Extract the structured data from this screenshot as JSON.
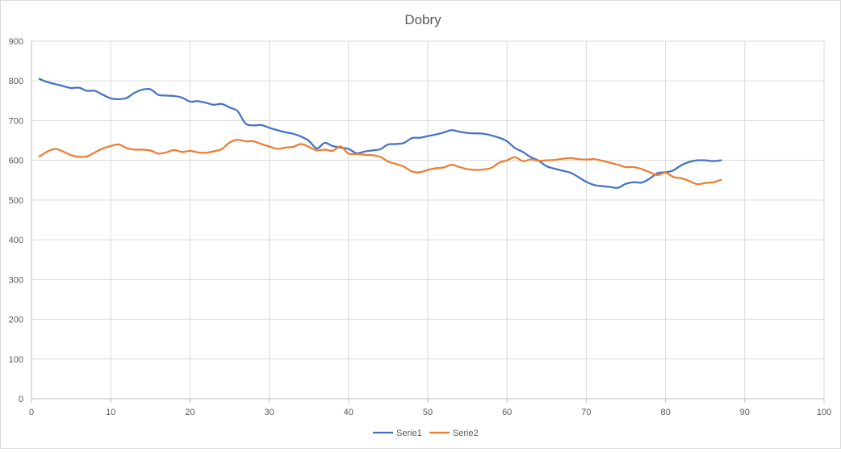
{
  "chart_data": {
    "type": "line",
    "title": "Dobry",
    "xlabel": "",
    "ylabel": "",
    "xlim": [
      0,
      100
    ],
    "ylim": [
      0,
      900
    ],
    "xticks": [
      0,
      10,
      20,
      30,
      40,
      50,
      60,
      70,
      80,
      90,
      100
    ],
    "yticks": [
      0,
      100,
      200,
      300,
      400,
      500,
      600,
      700,
      800,
      900
    ],
    "grid": true,
    "legend_position": "bottom",
    "series": [
      {
        "name": "Serie1",
        "color": "#4472c4",
        "x": [
          1,
          2,
          3,
          4,
          5,
          6,
          7,
          8,
          9,
          10,
          11,
          12,
          13,
          14,
          15,
          16,
          17,
          18,
          19,
          20,
          21,
          22,
          23,
          24,
          25,
          26,
          27,
          28,
          29,
          30,
          31,
          32,
          33,
          34,
          35,
          36,
          37,
          38,
          39,
          40,
          41,
          42,
          43,
          44,
          45,
          46,
          47,
          48,
          49,
          50,
          51,
          52,
          53,
          54,
          55,
          56,
          57,
          58,
          59,
          60,
          61,
          62,
          63,
          64,
          65,
          66,
          67,
          68,
          69,
          70,
          71,
          72,
          73,
          74,
          75,
          76,
          77,
          78,
          79,
          80,
          81,
          82,
          83,
          84,
          85,
          86,
          87
        ],
        "y": [
          805,
          797,
          792,
          787,
          782,
          783,
          775,
          775,
          765,
          756,
          754,
          757,
          770,
          778,
          779,
          765,
          763,
          762,
          758,
          748,
          749,
          745,
          740,
          742,
          733,
          724,
          693,
          688,
          689,
          682,
          676,
          671,
          667,
          660,
          649,
          630,
          644,
          636,
          632,
          629,
          618,
          622,
          625,
          628,
          640,
          641,
          644,
          656,
          657,
          661,
          665,
          670,
          676,
          672,
          669,
          668,
          667,
          663,
          657,
          648,
          631,
          621,
          608,
          599,
          585,
          579,
          574,
          569,
          558,
          546,
          538,
          535,
          533,
          531,
          541,
          545,
          544,
          554,
          568,
          570,
          575,
          588,
          596,
          600,
          600,
          598,
          600
        ]
      },
      {
        "name": "Serie2",
        "color": "#ed7d31",
        "x": [
          1,
          2,
          3,
          4,
          5,
          6,
          7,
          8,
          9,
          10,
          11,
          12,
          13,
          14,
          15,
          16,
          17,
          18,
          19,
          20,
          21,
          22,
          23,
          24,
          25,
          26,
          27,
          28,
          29,
          30,
          31,
          32,
          33,
          34,
          35,
          36,
          37,
          38,
          39,
          40,
          41,
          42,
          43,
          44,
          45,
          46,
          47,
          48,
          49,
          50,
          51,
          52,
          53,
          54,
          55,
          56,
          57,
          58,
          59,
          60,
          61,
          62,
          63,
          64,
          65,
          66,
          67,
          68,
          69,
          70,
          71,
          72,
          73,
          74,
          75,
          76,
          77,
          78,
          79,
          80,
          81,
          82,
          83,
          84,
          85,
          86,
          87
        ],
        "y": [
          610,
          622,
          629,
          622,
          613,
          609,
          610,
          620,
          630,
          636,
          640,
          631,
          627,
          627,
          625,
          617,
          620,
          626,
          621,
          624,
          620,
          619,
          623,
          628,
          645,
          652,
          648,
          648,
          641,
          635,
          629,
          632,
          634,
          641,
          634,
          625,
          627,
          624,
          635,
          617,
          616,
          614,
          613,
          609,
          597,
          591,
          584,
          572,
          570,
          576,
          580,
          582,
          589,
          583,
          578,
          576,
          577,
          581,
          594,
          600,
          608,
          598,
          602,
          599,
          600,
          601,
          604,
          606,
          603,
          602,
          603,
          599,
          594,
          589,
          583,
          583,
          578,
          570,
          563,
          569,
          558,
          555,
          548,
          540,
          543,
          545,
          551
        ]
      }
    ]
  }
}
